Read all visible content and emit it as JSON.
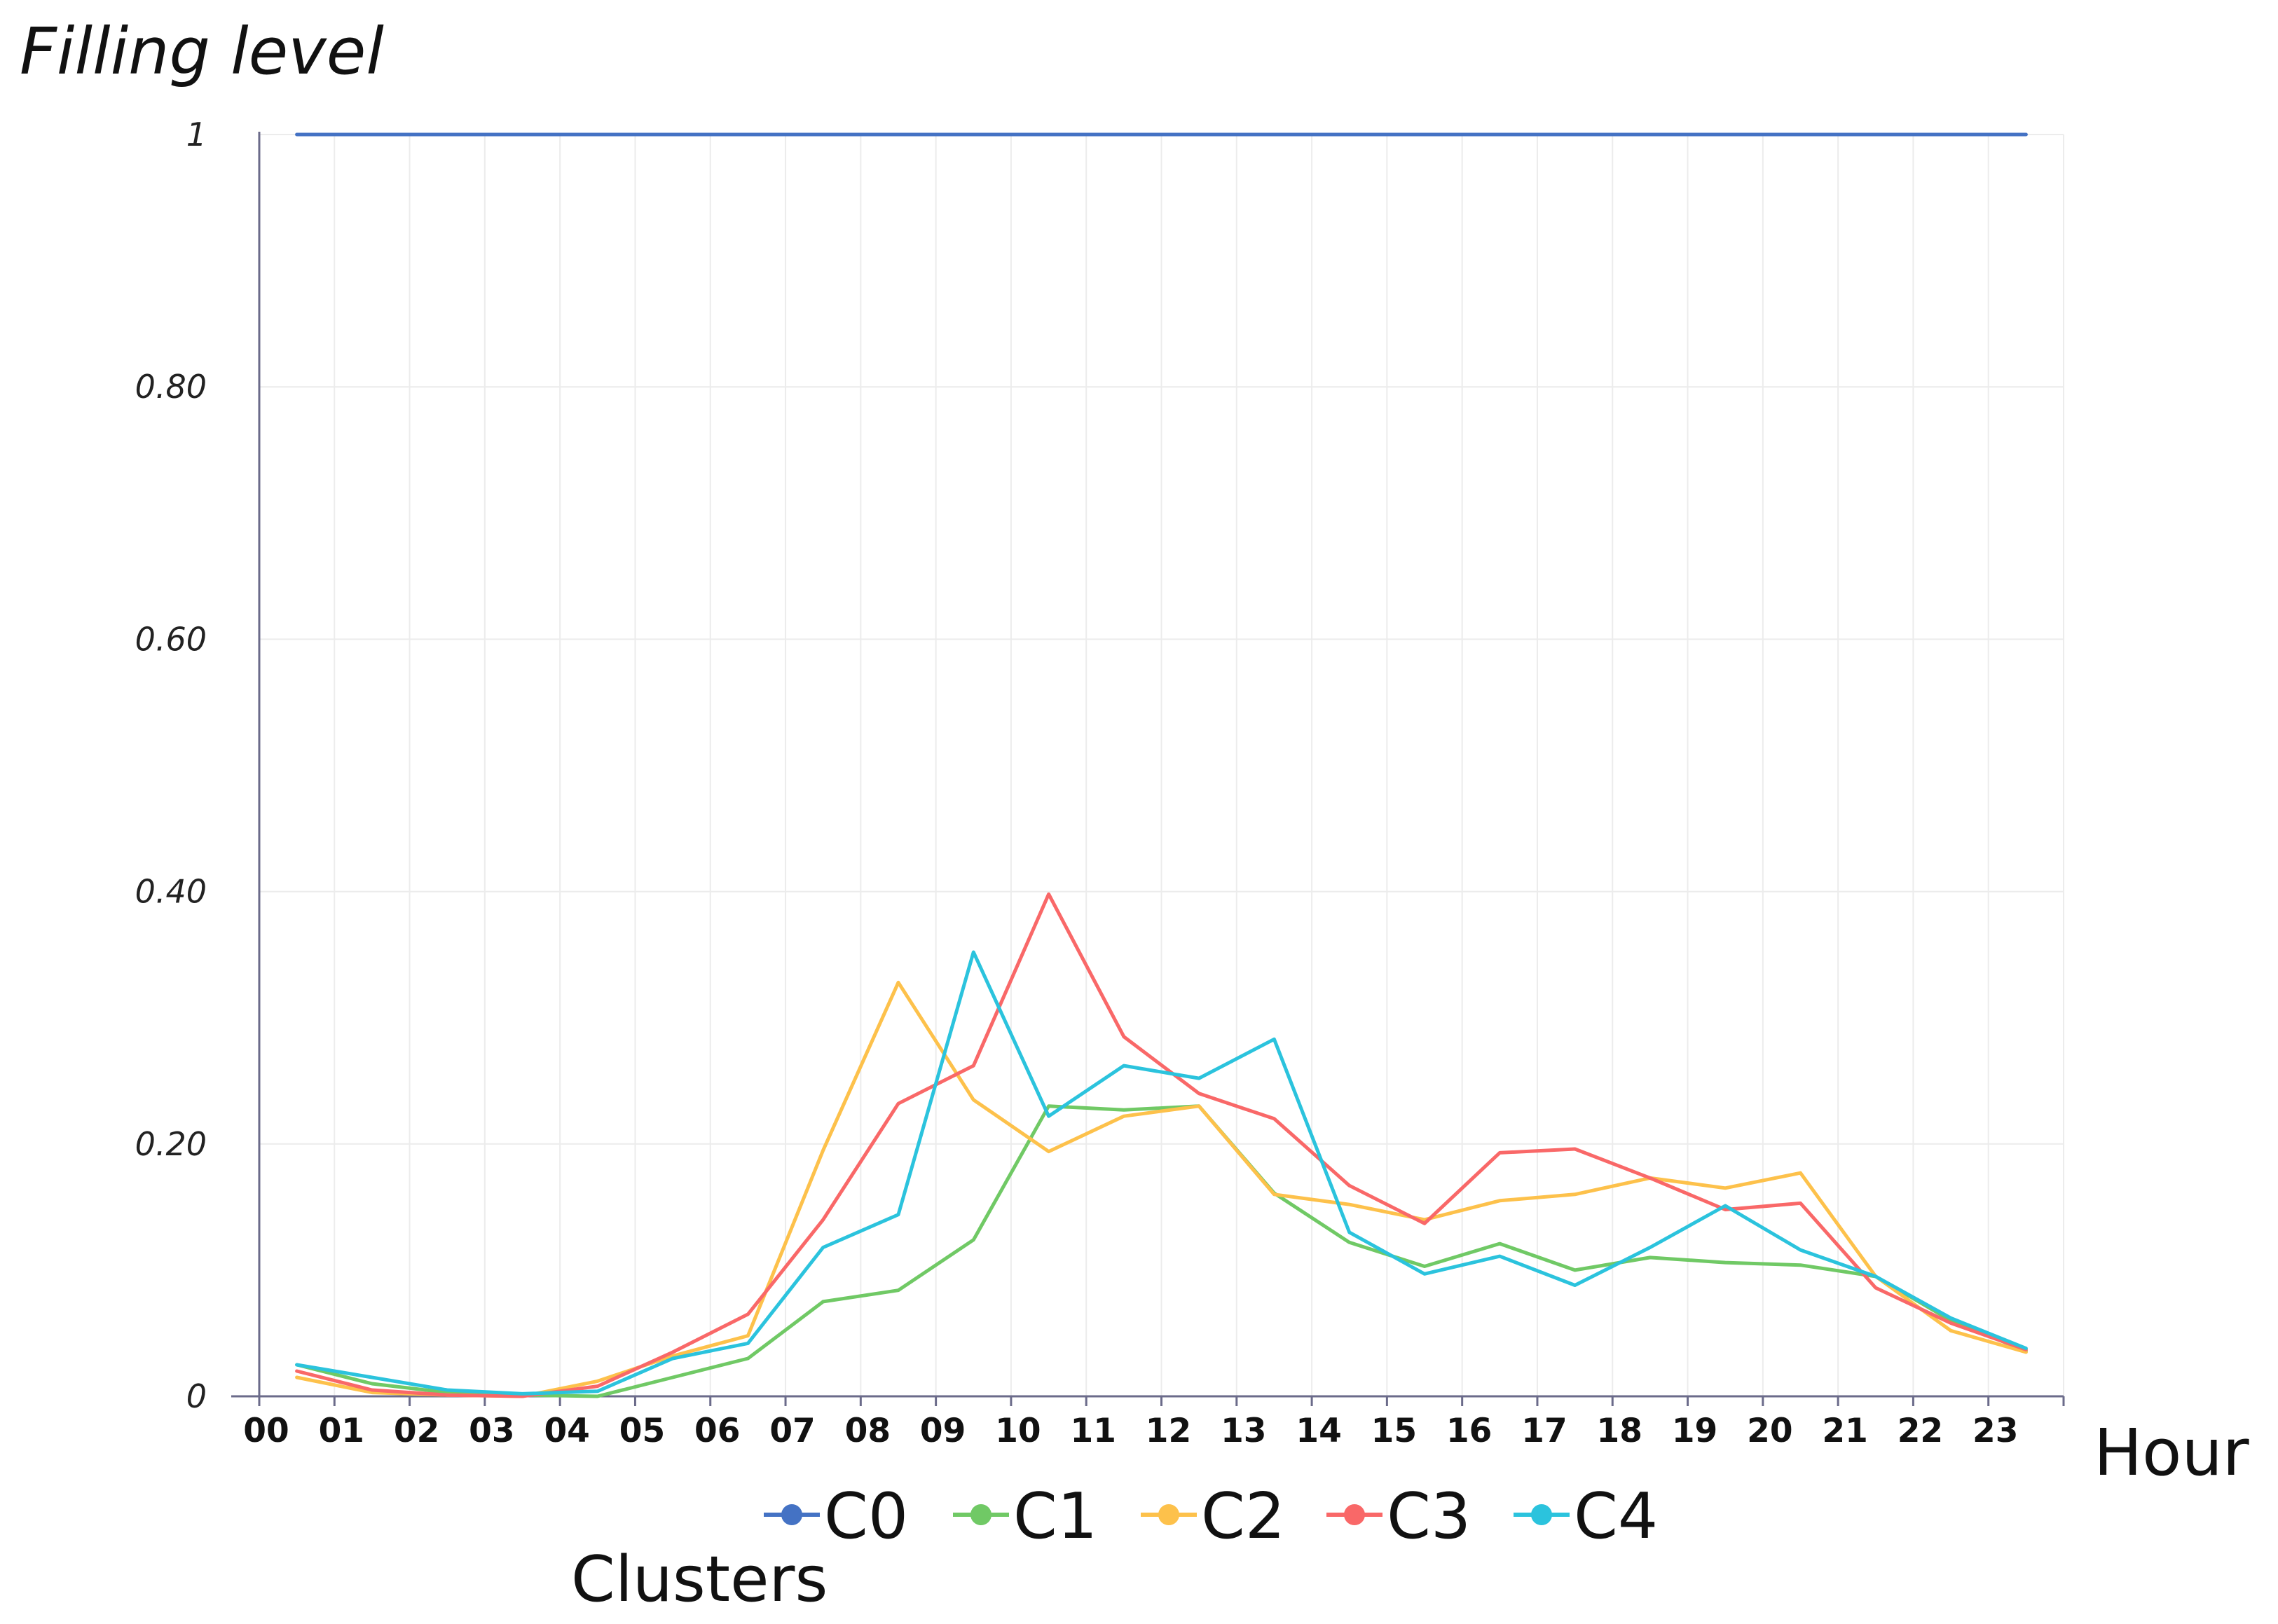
{
  "chart_data": {
    "type": "line",
    "title": "",
    "ylabel": "Filling level",
    "xlabel": "Hour",
    "legend_title": "Clusters",
    "legend_position": "bottom",
    "grid": true,
    "ylim": [
      0,
      1
    ],
    "yticks": [
      0,
      0.2,
      0.4,
      0.6,
      0.8,
      1
    ],
    "ytick_labels": [
      "0",
      "0.20",
      "0.40",
      "0.60",
      "0.80",
      "1"
    ],
    "categories": [
      "00",
      "01",
      "02",
      "03",
      "04",
      "05",
      "06",
      "07",
      "08",
      "09",
      "10",
      "11",
      "12",
      "13",
      "14",
      "15",
      "16",
      "17",
      "18",
      "19",
      "20",
      "21",
      "22",
      "23"
    ],
    "series": [
      {
        "name": "C0",
        "color": "#4472c4",
        "values": [
          1,
          1,
          1,
          1,
          1,
          1,
          1,
          1,
          1,
          1,
          1,
          1,
          1,
          1,
          1,
          1,
          1,
          1,
          1,
          1,
          1,
          1,
          1,
          1
        ]
      },
      {
        "name": "C1",
        "color": "#70c965",
        "values": [
          0.025,
          0.01,
          0.003,
          0.001,
          0,
          0.015,
          0.03,
          0.075,
          0.084,
          0.124,
          0.23,
          0.227,
          0.23,
          0.161,
          0.122,
          0.103,
          0.121,
          0.1,
          0.11,
          0.106,
          0.104,
          0.095,
          0.06,
          0.036
        ]
      },
      {
        "name": "C2",
        "color": "#fdc14b",
        "values": [
          0.015,
          0.003,
          0.001,
          0,
          0.012,
          0.032,
          0.048,
          0.195,
          0.328,
          0.235,
          0.194,
          0.222,
          0.23,
          0.16,
          0.152,
          0.14,
          0.155,
          0.16,
          0.173,
          0.165,
          0.177,
          0.095,
          0.052,
          0.035
        ]
      },
      {
        "name": "C3",
        "color": "#f96868",
        "values": [
          0.02,
          0.005,
          0.001,
          0,
          0.008,
          0.035,
          0.065,
          0.14,
          0.232,
          0.262,
          0.398,
          0.285,
          0.24,
          0.22,
          0.167,
          0.137,
          0.193,
          0.196,
          0.173,
          0.148,
          0.153,
          0.086,
          0.058,
          0.037
        ]
      },
      {
        "name": "C4",
        "color": "#2bc3dd",
        "values": [
          0.025,
          0.015,
          0.005,
          0.002,
          0.004,
          0.03,
          0.042,
          0.118,
          0.144,
          0.352,
          0.222,
          0.262,
          0.252,
          0.283,
          0.13,
          0.097,
          0.111,
          0.088,
          0.118,
          0.151,
          0.116,
          0.095,
          0.062,
          0.038
        ]
      }
    ]
  }
}
